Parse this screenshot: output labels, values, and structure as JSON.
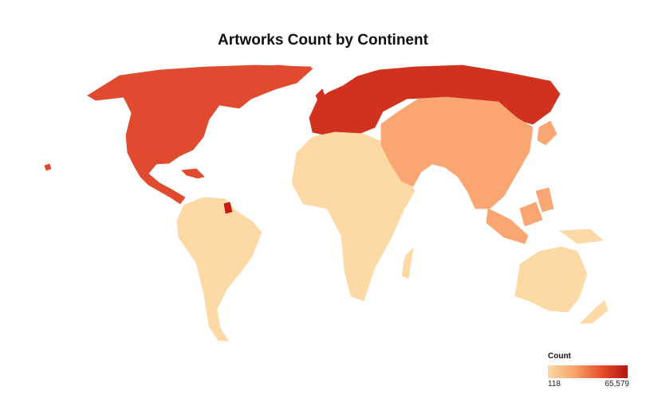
{
  "title": "Artworks Count by Continent",
  "legend": {
    "title": "Count",
    "min_label": "118",
    "max_label": "65,579",
    "color_low": "#fdd9a6",
    "color_high": "#b5150e"
  },
  "colors": {
    "north_america": "#e04a2e",
    "south_america": "#fdd9a6",
    "europe": "#d0321f",
    "africa": "#fdd9a6",
    "asia": "#f9a673",
    "oceania": "#fdd9a6",
    "guiana": "#c41f12"
  }
}
